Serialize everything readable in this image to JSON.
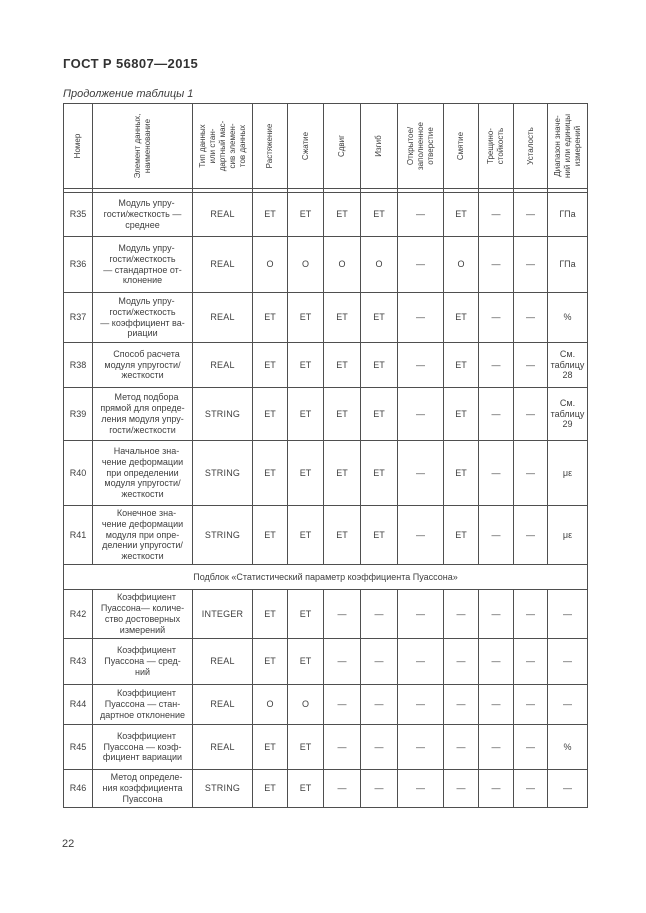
{
  "header": {
    "doc_title": "ГОСТ Р 56807—2015"
  },
  "table": {
    "caption": "Продолжение таблицы 1",
    "columns": [
      "Номер",
      "Элемент данных,\nнаименование",
      "Тип данных\nили стан-\nдартный мас-\nсив элемен-\nтов данных",
      "Растяжение",
      "Сжатие",
      "Сдвиг",
      "Изгиб",
      "Открытое/\nзаполненное\nотверстие",
      "Смятие",
      "Трещино-\nстойкость",
      "Усталость",
      "Диапазон значе-\nний или единицы\nизмерений"
    ],
    "rows": [
      {
        "kind": "data",
        "num": "R35",
        "name": "Модуль упру-\nгости/жесткость —\nсреднее",
        "type": "REAL",
        "values": [
          "ET",
          "ET",
          "ET",
          "ET",
          "—",
          "ET",
          "—",
          "—"
        ],
        "range": "ГПа"
      },
      {
        "kind": "data",
        "num": "R36",
        "name": "Модуль упру-\nгости/жесткость\n— стандартное от-\nклонение",
        "type": "REAL",
        "values": [
          "O",
          "O",
          "O",
          "O",
          "—",
          "O",
          "—",
          "—"
        ],
        "range": "ГПа"
      },
      {
        "kind": "data",
        "num": "R37",
        "name": "Модуль упру-\nгости/жесткость\n— коэффициент ва-\nриации",
        "type": "REAL",
        "values": [
          "ET",
          "ET",
          "ET",
          "ET",
          "—",
          "ET",
          "—",
          "—"
        ],
        "range": "%"
      },
      {
        "kind": "data",
        "num": "R38",
        "name": "Способ расчета\nмодуля упругости/\nжесткости",
        "type": "REAL",
        "values": [
          "ET",
          "ET",
          "ET",
          "ET",
          "—",
          "ET",
          "—",
          "—"
        ],
        "range": "См.\nтаблицу\n28"
      },
      {
        "kind": "data",
        "num": "R39",
        "name": "Метод подбора\nпрямой для опреде-\nления модуля упру-\nгости/жесткости",
        "type": "STRING",
        "values": [
          "ET",
          "ET",
          "ET",
          "ET",
          "—",
          "ET",
          "—",
          "—"
        ],
        "range": "См.\nтаблицу\n29"
      },
      {
        "kind": "data",
        "num": "R40",
        "name": "Начальное зна-\nчение деформации\nпри определении\nмодуля упругости/\nжесткости",
        "type": "STRING",
        "values": [
          "ET",
          "ET",
          "ET",
          "ET",
          "—",
          "ET",
          "—",
          "—"
        ],
        "range": "με"
      },
      {
        "kind": "data",
        "num": "R41",
        "name": "Конечное зна-\nчение деформации\nмодуля при опре-\nделении упругости/\nжесткости",
        "type": "STRING",
        "values": [
          "ET",
          "ET",
          "ET",
          "ET",
          "—",
          "ET",
          "—",
          "—"
        ],
        "range": "με"
      },
      {
        "kind": "subblock",
        "label": "Подблок «Статистический параметр коэффициента Пуассона»"
      },
      {
        "kind": "data",
        "num": "R42",
        "name": "Коэффициент\nПуассона— количе-\nство достоверных\nизмерений",
        "type": "INTEGER",
        "values": [
          "ET",
          "ET",
          "—",
          "—",
          "—",
          "—",
          "—",
          "—"
        ],
        "range": "—"
      },
      {
        "kind": "data",
        "num": "R43",
        "name": "Коэффициент\nПуассона — сред-\nний",
        "type": "REAL",
        "values": [
          "ET",
          "ET",
          "—",
          "—",
          "—",
          "—",
          "—",
          "—"
        ],
        "range": "—"
      },
      {
        "kind": "data",
        "num": "R44",
        "name": "Коэффициент\nПуассона — стан-\nдартное отклонение",
        "type": "REAL",
        "values": [
          "O",
          "O",
          "—",
          "—",
          "—",
          "—",
          "—",
          "—"
        ],
        "range": "—"
      },
      {
        "kind": "data",
        "num": "R45",
        "name": "Коэффициент\nПуассона — коэф-\nфициент вариации",
        "type": "REAL",
        "values": [
          "ET",
          "ET",
          "—",
          "—",
          "—",
          "—",
          "—",
          "—"
        ],
        "range": "%"
      },
      {
        "kind": "data",
        "num": "R46",
        "name": "Метод определе-\nния коэффициента\nПуассона",
        "type": "STRING",
        "values": [
          "ET",
          "ET",
          "—",
          "—",
          "—",
          "—",
          "—",
          "—"
        ],
        "range": "—"
      }
    ]
  },
  "footer": {
    "page_number": "22"
  }
}
